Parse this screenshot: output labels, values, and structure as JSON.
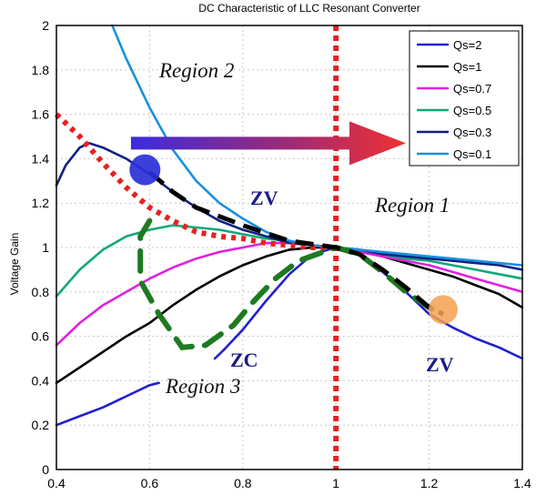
{
  "chart_data": {
    "type": "line",
    "title": "DC Characteristic of LLC Resonant Converter",
    "xlabel": "",
    "ylabel": "Voltage Gain",
    "xlim": [
      0.4,
      1.4
    ],
    "ylim": [
      0,
      2
    ],
    "xticks": [
      "0.4",
      "0.6",
      "0.8",
      "1",
      "1.2",
      "1.4"
    ],
    "yticks": [
      "0",
      "0.2",
      "0.4",
      "0.6",
      "0.8",
      "1",
      "1.2",
      "1.4",
      "1.6",
      "1.8",
      "2"
    ],
    "grid": true,
    "legend_position": "top-right",
    "series": [
      {
        "name": "Qs=2",
        "color": "#2020d0",
        "segments": [
          [
            [
              0.4,
              0.2
            ],
            [
              0.45,
              0.24
            ],
            [
              0.5,
              0.28
            ],
            [
              0.55,
              0.33
            ],
            [
              0.6,
              0.38
            ],
            [
              0.62,
              0.39
            ]
          ],
          [
            [
              0.74,
              0.5
            ],
            [
              0.76,
              0.54
            ],
            [
              0.8,
              0.63
            ],
            [
              0.85,
              0.76
            ],
            [
              0.9,
              0.88
            ],
            [
              0.95,
              0.97
            ],
            [
              1.0,
              1.0
            ],
            [
              1.05,
              0.97
            ],
            [
              1.1,
              0.89
            ],
            [
              1.15,
              0.8
            ],
            [
              1.2,
              0.7
            ],
            [
              1.25,
              0.64
            ],
            [
              1.3,
              0.59
            ],
            [
              1.35,
              0.55
            ],
            [
              1.4,
              0.5
            ]
          ]
        ]
      },
      {
        "name": "Qs=1",
        "color": "#000000",
        "segments": [
          [
            [
              0.4,
              0.39
            ],
            [
              0.45,
              0.46
            ],
            [
              0.5,
              0.53
            ],
            [
              0.55,
              0.6
            ],
            [
              0.6,
              0.66
            ],
            [
              0.65,
              0.74
            ],
            [
              0.7,
              0.81
            ],
            [
              0.75,
              0.87
            ],
            [
              0.8,
              0.92
            ],
            [
              0.85,
              0.96
            ],
            [
              0.9,
              0.99
            ],
            [
              0.95,
              1.0
            ],
            [
              1.0,
              1.0
            ],
            [
              1.05,
              0.99
            ],
            [
              1.1,
              0.96
            ],
            [
              1.15,
              0.93
            ],
            [
              1.2,
              0.9
            ],
            [
              1.25,
              0.87
            ],
            [
              1.3,
              0.83
            ],
            [
              1.35,
              0.79
            ],
            [
              1.4,
              0.73
            ]
          ]
        ]
      },
      {
        "name": "Qs=0.7",
        "color": "#e020e0",
        "segments": [
          [
            [
              0.4,
              0.56
            ],
            [
              0.45,
              0.66
            ],
            [
              0.5,
              0.74
            ],
            [
              0.55,
              0.8
            ],
            [
              0.6,
              0.86
            ],
            [
              0.65,
              0.91
            ],
            [
              0.7,
              0.95
            ],
            [
              0.75,
              0.98
            ],
            [
              0.8,
              1.0
            ],
            [
              0.85,
              1.02
            ],
            [
              0.9,
              1.02
            ],
            [
              0.95,
              1.01
            ],
            [
              1.0,
              1.0
            ],
            [
              1.05,
              0.98
            ],
            [
              1.1,
              0.96
            ],
            [
              1.15,
              0.94
            ],
            [
              1.2,
              0.92
            ],
            [
              1.25,
              0.89
            ],
            [
              1.3,
              0.86
            ],
            [
              1.35,
              0.83
            ],
            [
              1.4,
              0.8
            ]
          ]
        ]
      },
      {
        "name": "Qs=0.5",
        "color": "#10a878",
        "segments": [
          [
            [
              0.4,
              0.78
            ],
            [
              0.45,
              0.9
            ],
            [
              0.5,
              0.99
            ],
            [
              0.55,
              1.05
            ],
            [
              0.6,
              1.08
            ],
            [
              0.65,
              1.1
            ],
            [
              0.7,
              1.09
            ],
            [
              0.75,
              1.08
            ],
            [
              0.8,
              1.06
            ],
            [
              0.85,
              1.04
            ],
            [
              0.9,
              1.03
            ],
            [
              0.95,
              1.01
            ],
            [
              1.0,
              1.0
            ],
            [
              1.05,
              0.99
            ],
            [
              1.1,
              0.97
            ],
            [
              1.15,
              0.95
            ],
            [
              1.2,
              0.94
            ],
            [
              1.25,
              0.92
            ],
            [
              1.3,
              0.9
            ],
            [
              1.35,
              0.88
            ],
            [
              1.4,
              0.86
            ]
          ]
        ]
      },
      {
        "name": "Qs=0.3",
        "color": "#102080",
        "segments": [
          [
            [
              0.4,
              1.28
            ],
            [
              0.42,
              1.37
            ],
            [
              0.45,
              1.45
            ],
            [
              0.47,
              1.47
            ],
            [
              0.5,
              1.45
            ],
            [
              0.55,
              1.4
            ],
            [
              0.6,
              1.33
            ],
            [
              0.65,
              1.25
            ],
            [
              0.7,
              1.18
            ],
            [
              0.75,
              1.12
            ],
            [
              0.8,
              1.08
            ],
            [
              0.85,
              1.05
            ],
            [
              0.9,
              1.02
            ],
            [
              0.95,
              1.01
            ],
            [
              1.0,
              1.0
            ],
            [
              1.05,
              0.99
            ],
            [
              1.1,
              0.97
            ],
            [
              1.15,
              0.96
            ],
            [
              1.2,
              0.95
            ],
            [
              1.25,
              0.94
            ],
            [
              1.3,
              0.93
            ],
            [
              1.35,
              0.92
            ],
            [
              1.4,
              0.9
            ]
          ]
        ]
      },
      {
        "name": "Qs=0.1",
        "color": "#1890e0",
        "segments": [
          [
            [
              0.52,
              2.0
            ],
            [
              0.55,
              1.85
            ],
            [
              0.6,
              1.63
            ],
            [
              0.65,
              1.44
            ],
            [
              0.7,
              1.3
            ],
            [
              0.75,
              1.2
            ],
            [
              0.8,
              1.13
            ],
            [
              0.85,
              1.07
            ],
            [
              0.9,
              1.03
            ],
            [
              0.95,
              1.01
            ],
            [
              1.0,
              1.0
            ],
            [
              1.05,
              0.99
            ],
            [
              1.1,
              0.98
            ],
            [
              1.15,
              0.97
            ],
            [
              1.2,
              0.96
            ],
            [
              1.25,
              0.95
            ],
            [
              1.3,
              0.94
            ],
            [
              1.35,
              0.93
            ],
            [
              1.4,
              0.92
            ]
          ]
        ]
      }
    ],
    "annotations": {
      "region1": "Region 1",
      "region2": "Region 2",
      "region3": "Region 3",
      "zv_upper": "ZV",
      "zv_lower": "ZV",
      "zc": "ZC",
      "vertical_line_x": 1.0,
      "red_dotted_curve": [
        [
          0.4,
          1.6
        ],
        [
          0.45,
          1.5
        ],
        [
          0.5,
          1.38
        ],
        [
          0.55,
          1.27
        ],
        [
          0.6,
          1.18
        ],
        [
          0.65,
          1.12
        ],
        [
          0.7,
          1.07
        ],
        [
          0.75,
          1.05
        ],
        [
          0.8,
          1.04
        ],
        [
          0.85,
          1.02
        ],
        [
          0.9,
          1.01
        ],
        [
          0.95,
          1.0
        ],
        [
          1.0,
          1.0
        ]
      ],
      "black_dashed_curve": [
        [
          0.6,
          1.34
        ],
        [
          0.65,
          1.25
        ],
        [
          0.7,
          1.18
        ],
        [
          0.8,
          1.1
        ],
        [
          0.9,
          1.03
        ],
        [
          1.0,
          1.0
        ],
        [
          1.05,
          0.97
        ],
        [
          1.1,
          0.9
        ],
        [
          1.15,
          0.82
        ],
        [
          1.2,
          0.73
        ],
        [
          1.23,
          0.7
        ]
      ],
      "green_dashed_curve": [
        [
          0.6,
          1.12
        ],
        [
          0.58,
          1.05
        ],
        [
          0.58,
          0.85
        ],
        [
          0.62,
          0.7
        ],
        [
          0.67,
          0.55
        ],
        [
          0.72,
          0.56
        ],
        [
          0.78,
          0.65
        ],
        [
          0.82,
          0.75
        ],
        [
          0.87,
          0.86
        ],
        [
          0.92,
          0.94
        ],
        [
          1.0,
          1.0
        ],
        [
          1.05,
          0.97
        ],
        [
          1.1,
          0.89
        ],
        [
          1.15,
          0.8
        ],
        [
          1.2,
          0.73
        ],
        [
          1.23,
          0.7
        ]
      ],
      "arrow_x_range": [
        0.56,
        1.15
      ],
      "arrow_y": 1.47,
      "marker_blue": [
        0.59,
        1.35
      ],
      "marker_orange": [
        1.23,
        0.72
      ]
    }
  }
}
